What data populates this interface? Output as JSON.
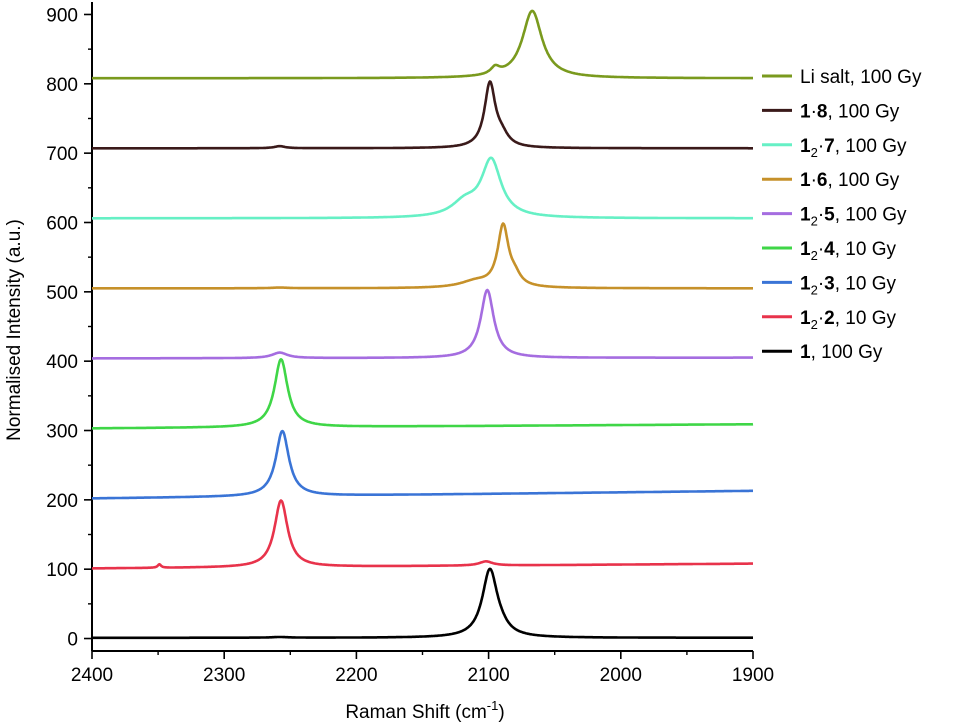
{
  "chart_data": {
    "type": "line",
    "xlabel": "Raman Shift (cm",
    "xlabel_sup": "-1",
    "xlabel_end": ")",
    "ylabel": "Normalised Intensity (a.u.)",
    "xlim": [
      2400,
      1900
    ],
    "ylim": [
      -18,
      918
    ],
    "x_reversed": true,
    "x_ticks": [
      2400,
      2300,
      2200,
      2100,
      2000,
      1900
    ],
    "y_ticks": [
      0,
      100,
      200,
      300,
      400,
      500,
      600,
      700,
      800,
      900
    ],
    "grid": false,
    "legend_position": "right",
    "series": [
      {
        "name": "1, 100 Gy",
        "color": "#000000",
        "label_parts": [
          {
            "t": "1",
            "b": true
          },
          {
            "t": ", 100 Gy"
          }
        ],
        "baseline_start": 1,
        "baseline_end": 1,
        "bumps": [
          {
            "pos": 2258,
            "h": 1,
            "w": 8
          }
        ],
        "peaks": [
          {
            "pos": 2099,
            "h": 98,
            "w": 7
          },
          {
            "pos": 2090,
            "h": 5,
            "w": 6
          }
        ]
      },
      {
        "name": "1₂·2, 10 Gy",
        "color": "#e8334b",
        "label_parts": [
          {
            "t": "1",
            "b": true
          },
          {
            "t": "2",
            "sub": true
          },
          {
            "t": "·"
          },
          {
            "t": "2",
            "b": true
          },
          {
            "t": ", 10 Gy"
          }
        ],
        "baseline_start": 101,
        "baseline_end": 108,
        "bumps": [
          {
            "pos": 2349,
            "h": 5,
            "w": 1.5
          },
          {
            "pos": 2102,
            "h": 6,
            "w": 6
          }
        ],
        "peaks": [
          {
            "pos": 2257,
            "h": 96,
            "w": 6
          }
        ]
      },
      {
        "name": "1₂·3, 10 Gy",
        "color": "#3a74d6",
        "label_parts": [
          {
            "t": "1",
            "b": true
          },
          {
            "t": "2",
            "sub": true
          },
          {
            "t": "·"
          },
          {
            "t": "3",
            "b": true
          },
          {
            "t": ", 10 Gy"
          }
        ],
        "baseline_start": 202,
        "baseline_end": 213,
        "bumps": [],
        "peaks": [
          {
            "pos": 2256,
            "h": 94,
            "w": 6
          }
        ]
      },
      {
        "name": "1₂·4, 10 Gy",
        "color": "#3fd647",
        "label_parts": [
          {
            "t": "1",
            "b": true
          },
          {
            "t": "2",
            "sub": true
          },
          {
            "t": "·"
          },
          {
            "t": "4",
            "b": true
          },
          {
            "t": ", 10 Gy"
          }
        ],
        "baseline_start": 303,
        "baseline_end": 309,
        "bumps": [],
        "peaks": [
          {
            "pos": 2257,
            "h": 98,
            "w": 6
          }
        ]
      },
      {
        "name": "1₂·5, 100 Gy",
        "color": "#a56de0",
        "label_parts": [
          {
            "t": "1",
            "b": true
          },
          {
            "t": "2",
            "sub": true
          },
          {
            "t": "·"
          },
          {
            "t": "5",
            "b": true
          },
          {
            "t": ", 100 Gy"
          }
        ],
        "baseline_start": 404,
        "baseline_end": 405,
        "bumps": [
          {
            "pos": 2258,
            "h": 8,
            "w": 7
          }
        ],
        "peaks": [
          {
            "pos": 2101,
            "h": 98,
            "w": 6
          }
        ]
      },
      {
        "name": "1·6, 100 Gy",
        "color": "#c6912a",
        "label_parts": [
          {
            "t": "1",
            "b": true
          },
          {
            "t": "·"
          },
          {
            "t": "6",
            "b": true
          },
          {
            "t": ", 100 Gy"
          }
        ],
        "baseline_start": 505,
        "baseline_end": 505,
        "bumps": [
          {
            "pos": 2258,
            "h": 1,
            "w": 8
          },
          {
            "pos": 2110,
            "h": 9,
            "w": 14
          }
        ],
        "peaks": [
          {
            "pos": 2089,
            "h": 88,
            "w": 5
          },
          {
            "pos": 2080,
            "h": 12,
            "w": 5
          }
        ]
      },
      {
        "name": "1₂·7, 100 Gy",
        "color": "#66f0c5",
        "label_parts": [
          {
            "t": "1",
            "b": true
          },
          {
            "t": "2",
            "sub": true
          },
          {
            "t": "·"
          },
          {
            "t": "7",
            "b": true
          },
          {
            "t": ", 100 Gy"
          }
        ],
        "baseline_start": 606,
        "baseline_end": 606,
        "bumps": [],
        "peaks": [
          {
            "pos": 2098,
            "h": 82,
            "w": 9
          },
          {
            "pos": 2118,
            "h": 20,
            "w": 12
          }
        ]
      },
      {
        "name": "1·8, 100 Gy",
        "color": "#3a1a1a",
        "label_parts": [
          {
            "t": "1",
            "b": true
          },
          {
            "t": "·"
          },
          {
            "t": "8",
            "b": true
          },
          {
            "t": ", 100 Gy"
          }
        ],
        "baseline_start": 707,
        "baseline_end": 707,
        "bumps": [
          {
            "pos": 2258,
            "h": 3,
            "w": 5
          }
        ],
        "peaks": [
          {
            "pos": 2099,
            "h": 92,
            "w": 5
          },
          {
            "pos": 2090,
            "h": 14,
            "w": 6
          }
        ]
      },
      {
        "name": "Li salt, 100 Gy",
        "color": "#7a9a1e",
        "label_parts": [
          {
            "t": "Li salt, 100 Gy"
          }
        ],
        "baseline_start": 808,
        "baseline_end": 808,
        "bumps": [],
        "peaks": [
          {
            "pos": 2067,
            "h": 97,
            "w": 9
          },
          {
            "pos": 2095,
            "h": 10,
            "w": 4
          }
        ]
      }
    ]
  }
}
